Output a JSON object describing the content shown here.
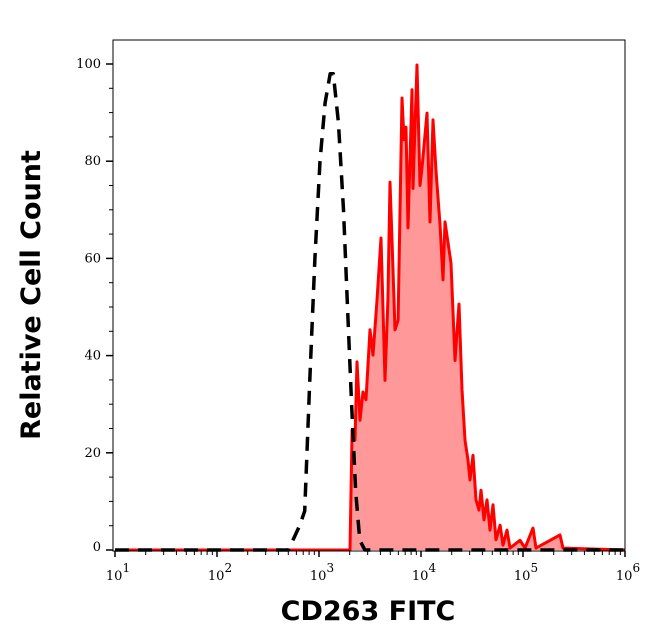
{
  "chart_data": {
    "type": "area",
    "title": "",
    "xlabel": "CD263 FITC",
    "ylabel": "Relative Cell Count",
    "xscale": "log",
    "xlim": [
      10,
      1000000
    ],
    "ylim": [
      0,
      105
    ],
    "grid": false,
    "x_ticks": [
      {
        "base": "10",
        "exp": "1",
        "value": 10
      },
      {
        "base": "10",
        "exp": "2",
        "value": 100
      },
      {
        "base": "10",
        "exp": "3",
        "value": 1000
      },
      {
        "base": "10",
        "exp": "4",
        "value": 10000
      },
      {
        "base": "10",
        "exp": "5",
        "value": 100000
      },
      {
        "base": "10",
        "exp": "6",
        "value": 1000000
      }
    ],
    "y_ticks": [
      "0",
      "20",
      "40",
      "60",
      "80",
      "100"
    ],
    "series": [
      {
        "style": "dashed",
        "color": "#000000",
        "filled": false,
        "x": [
          10,
          501,
          646,
          724,
          813,
          912,
          1023,
          1148,
          1288,
          1380,
          1549,
          1738,
          1905,
          2089,
          2291,
          2512,
          2818,
          1000000
        ],
        "y": [
          0,
          0,
          5,
          8,
          35,
          60,
          80,
          92,
          98,
          98,
          88,
          70,
          50,
          30,
          12,
          2,
          0,
          0
        ]
      },
      {
        "style": "solid",
        "color": "#ff0000",
        "fill": "#ff9999",
        "filled": true,
        "x": [
          10,
          2014,
          2109,
          2254,
          2360,
          2523,
          2698,
          2891,
          3162,
          3381,
          3707,
          4055,
          4436,
          4742,
          4966,
          5200,
          5559,
          5957,
          6516,
          6808,
          7129,
          7464,
          8166,
          8356,
          9141,
          9772,
          10230,
          11460,
          12250,
          13120,
          14030,
          15350,
          16440,
          17180,
          19680,
          21530,
          23600,
          25230,
          26980,
          28910,
          30200,
          32360,
          34590,
          37070,
          38730,
          41500,
          44360,
          47430,
          50820,
          54330,
          59570,
          63680,
          69660,
          74650,
          93540,
          104700,
          125300,
          134000,
          230700,
          246600,
          1000000
        ],
        "y": [
          0,
          0,
          24.7,
          22.6,
          38.7,
          26.7,
          32.5,
          30.9,
          45.3,
          40.1,
          51.4,
          64.2,
          34.9,
          51.4,
          75.7,
          63.8,
          45.3,
          47.3,
          93,
          84.4,
          87,
          66.3,
          94.7,
          74.4,
          99.8,
          75,
          78.6,
          89.9,
          67.5,
          88.5,
          78,
          67,
          55.6,
          67.5,
          59,
          39,
          50.6,
          33,
          22.6,
          18.5,
          14.4,
          19.5,
          10.3,
          8.2,
          12.3,
          6.2,
          10.3,
          4.1,
          9.3,
          2.1,
          5.1,
          1,
          4.1,
          0.4,
          2,
          0.4,
          4.5,
          0.4,
          3.1,
          0.4,
          0
        ]
      }
    ]
  }
}
